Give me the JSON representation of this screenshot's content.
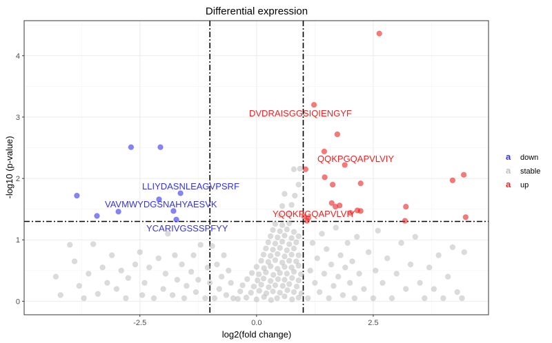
{
  "chart_data": {
    "type": "scatter",
    "title": "Differential expression",
    "xlabel": "log2(fold change)",
    "ylabel": "-log10 (p-value)",
    "xlim": [
      -4.98,
      4.97
    ],
    "ylim": [
      -0.22,
      4.57
    ],
    "x_ticks": [
      -2.5,
      0.0,
      2.5
    ],
    "x_tick_labels": [
      "-2.5",
      "0.0",
      "2.5"
    ],
    "y_ticks": [
      0,
      1,
      2,
      3,
      4
    ],
    "y_tick_labels": [
      "0",
      "1",
      "2",
      "3",
      "4"
    ],
    "grid": true,
    "thresholds": {
      "x": [
        -1,
        1
      ],
      "y": 1.3
    },
    "legend": {
      "placement": "right",
      "entries": [
        "down",
        "stable",
        "up"
      ],
      "key_glyph": "a"
    },
    "colors": {
      "down": "#3333ee",
      "stable": "#bdbdbd",
      "up": "#ee2222"
    },
    "series": [
      {
        "name": "down",
        "points": [
          [
            -2.69,
            2.51
          ],
          [
            -2.06,
            2.51
          ],
          [
            -3.85,
            1.72
          ],
          [
            -1.63,
            1.76
          ],
          [
            -2.09,
            1.66
          ],
          [
            -2.96,
            1.46
          ],
          [
            -3.42,
            1.39
          ],
          [
            -1.78,
            1.47
          ],
          [
            -1.72,
            1.33
          ]
        ]
      },
      {
        "name": "up",
        "points": [
          [
            2.63,
            4.36
          ],
          [
            1.23,
            3.2
          ],
          [
            1.73,
            2.72
          ],
          [
            1.45,
            2.44
          ],
          [
            1.05,
            2.15
          ],
          [
            1.89,
            2.22
          ],
          [
            1.46,
            2.02
          ],
          [
            1.63,
            1.9
          ],
          [
            2.23,
            1.92
          ],
          [
            4.2,
            1.97
          ],
          [
            4.44,
            2.06
          ],
          [
            1.61,
            1.6
          ],
          [
            1.78,
            1.56
          ],
          [
            1.69,
            1.54
          ],
          [
            2.16,
            1.48
          ],
          [
            2.23,
            1.47
          ],
          [
            2.01,
            1.44
          ],
          [
            3.2,
            1.54
          ],
          [
            3.18,
            1.31
          ],
          [
            4.48,
            1.37
          ],
          [
            1.02,
            1.38
          ],
          [
            1.11,
            1.36
          ],
          [
            1.08,
            1.31
          ]
        ]
      },
      {
        "name": "stable",
        "points": [
          [
            -4.3,
            0.4
          ],
          [
            -4.2,
            0.1
          ],
          [
            -4.0,
            0.92
          ],
          [
            -3.9,
            0.65
          ],
          [
            -3.8,
            0.25
          ],
          [
            -3.7,
            0.05
          ],
          [
            -3.6,
            0.45
          ],
          [
            -3.5,
            0.93
          ],
          [
            -3.4,
            0.12
          ],
          [
            -3.3,
            0.55
          ],
          [
            -3.2,
            0.3
          ],
          [
            -3.1,
            0.75
          ],
          [
            -3.0,
            0.2
          ],
          [
            -2.9,
            0.5
          ],
          [
            -2.8,
            0.05
          ],
          [
            -2.75,
            0.38
          ],
          [
            -2.6,
            0.6
          ],
          [
            -2.5,
            0.8
          ],
          [
            -2.45,
            0.1
          ],
          [
            -2.4,
            0.3
          ],
          [
            -2.3,
            0.55
          ],
          [
            -2.2,
            0.05
          ],
          [
            -2.1,
            0.7
          ],
          [
            -2.0,
            0.2
          ],
          [
            -1.95,
            0.45
          ],
          [
            -1.9,
            1.1
          ],
          [
            -1.8,
            0.1
          ],
          [
            -1.75,
            0.75
          ],
          [
            -1.7,
            0.35
          ],
          [
            -1.6,
            0.6
          ],
          [
            -1.55,
            0.05
          ],
          [
            -1.5,
            0.25
          ],
          [
            -1.4,
            0.48
          ],
          [
            -1.35,
            0.75
          ],
          [
            -1.3,
            0.15
          ],
          [
            -1.25,
            0.35
          ],
          [
            -1.2,
            0.92
          ],
          [
            -1.1,
            0.05
          ],
          [
            -1.05,
            0.55
          ],
          [
            -1.0,
            0.3
          ],
          [
            -0.95,
            0.9
          ],
          [
            -0.9,
            0.05
          ],
          [
            -0.85,
            0.6
          ],
          [
            -0.8,
            0.2
          ],
          [
            -0.75,
            0.4
          ],
          [
            -0.7,
            0.75
          ],
          [
            -0.65,
            0.1
          ],
          [
            -0.6,
            0.5
          ],
          [
            -0.55,
            0.3
          ],
          [
            -0.5,
            0.05
          ],
          [
            1.1,
            0.05
          ],
          [
            1.15,
            0.5
          ],
          [
            1.2,
            0.95
          ],
          [
            1.25,
            0.3
          ],
          [
            1.3,
            0.7
          ],
          [
            1.35,
            0.15
          ],
          [
            1.4,
            1.1
          ],
          [
            1.45,
            0.45
          ],
          [
            1.5,
            0.85
          ],
          [
            1.55,
            0.05
          ],
          [
            1.6,
            0.6
          ],
          [
            1.65,
            0.25
          ],
          [
            1.7,
            1.2
          ],
          [
            1.75,
            0.4
          ],
          [
            1.8,
            0.75
          ],
          [
            1.85,
            0.1
          ],
          [
            1.9,
            0.55
          ],
          [
            1.95,
            0.95
          ],
          [
            2.0,
            0.3
          ],
          [
            2.05,
            0.65
          ],
          [
            2.1,
            0.05
          ],
          [
            2.15,
            1.05
          ],
          [
            2.2,
            0.45
          ],
          [
            2.3,
            0.2
          ],
          [
            2.4,
            0.8
          ],
          [
            2.5,
            0.05
          ],
          [
            2.55,
            0.5
          ],
          [
            2.6,
            1.15
          ],
          [
            2.7,
            0.3
          ],
          [
            2.8,
            0.7
          ],
          [
            2.9,
            0.05
          ],
          [
            3.0,
            0.45
          ],
          [
            3.1,
            0.95
          ],
          [
            3.2,
            0.2
          ],
          [
            3.3,
            0.6
          ],
          [
            3.4,
            1.05
          ],
          [
            3.5,
            0.3
          ],
          [
            3.6,
            0.05
          ],
          [
            3.7,
            0.55
          ],
          [
            3.8,
            0.2
          ],
          [
            3.9,
            0.75
          ],
          [
            4.0,
            0.05
          ],
          [
            4.1,
            0.4
          ],
          [
            4.2,
            0.88
          ],
          [
            4.3,
            0.15
          ],
          [
            4.4,
            0.05
          ],
          [
            4.45,
            0.8
          ],
          [
            -0.4,
            0.04
          ],
          [
            -0.22,
            0.06
          ],
          [
            0.0,
            0.03
          ],
          [
            0.16,
            0.07
          ],
          [
            0.31,
            0.02
          ],
          [
            0.44,
            0.05
          ],
          [
            0.6,
            0.08
          ],
          [
            0.76,
            0.03
          ],
          [
            0.9,
            0.06
          ],
          [
            -0.35,
            0.16
          ],
          [
            -0.12,
            0.14
          ],
          [
            0.06,
            0.17
          ],
          [
            0.21,
            0.13
          ],
          [
            0.35,
            0.16
          ],
          [
            0.5,
            0.14
          ],
          [
            0.66,
            0.18
          ],
          [
            0.8,
            0.15
          ],
          [
            0.96,
            0.13
          ],
          [
            -0.3,
            0.26
          ],
          [
            -0.06,
            0.24
          ],
          [
            0.1,
            0.27
          ],
          [
            0.26,
            0.23
          ],
          [
            0.4,
            0.26
          ],
          [
            0.56,
            0.25
          ],
          [
            0.7,
            0.28
          ],
          [
            0.86,
            0.24
          ],
          [
            -0.2,
            0.36
          ],
          [
            0.02,
            0.34
          ],
          [
            0.15,
            0.37
          ],
          [
            0.3,
            0.33
          ],
          [
            0.46,
            0.36
          ],
          [
            0.6,
            0.35
          ],
          [
            0.76,
            0.38
          ],
          [
            0.9,
            0.34
          ],
          [
            -0.1,
            0.46
          ],
          [
            0.05,
            0.44
          ],
          [
            0.2,
            0.47
          ],
          [
            0.36,
            0.43
          ],
          [
            0.5,
            0.46
          ],
          [
            0.65,
            0.45
          ],
          [
            0.8,
            0.48
          ],
          [
            0.95,
            0.44
          ],
          [
            0.0,
            0.56
          ],
          [
            0.16,
            0.54
          ],
          [
            0.3,
            0.57
          ],
          [
            0.45,
            0.53
          ],
          [
            0.6,
            0.56
          ],
          [
            0.75,
            0.55
          ],
          [
            0.9,
            0.58
          ],
          [
            0.1,
            0.66
          ],
          [
            0.25,
            0.64
          ],
          [
            0.4,
            0.67
          ],
          [
            0.55,
            0.63
          ],
          [
            0.7,
            0.66
          ],
          [
            0.85,
            0.65
          ],
          [
            0.15,
            0.76
          ],
          [
            0.3,
            0.74
          ],
          [
            0.45,
            0.77
          ],
          [
            0.6,
            0.73
          ],
          [
            0.75,
            0.76
          ],
          [
            0.9,
            0.75
          ],
          [
            0.2,
            0.86
          ],
          [
            0.35,
            0.84
          ],
          [
            0.5,
            0.87
          ],
          [
            0.65,
            0.83
          ],
          [
            0.8,
            0.86
          ],
          [
            0.25,
            0.96
          ],
          [
            0.4,
            0.94
          ],
          [
            0.55,
            0.97
          ],
          [
            0.7,
            0.93
          ],
          [
            0.85,
            0.96
          ],
          [
            0.3,
            1.06
          ],
          [
            0.45,
            1.04
          ],
          [
            0.6,
            1.07
          ],
          [
            0.75,
            1.03
          ],
          [
            0.9,
            1.06
          ],
          [
            0.35,
            1.16
          ],
          [
            0.5,
            1.14
          ],
          [
            0.65,
            1.17
          ],
          [
            0.8,
            1.13
          ],
          [
            0.4,
            1.26
          ],
          [
            0.55,
            1.24
          ],
          [
            0.7,
            1.27
          ],
          [
            0.5,
            1.4
          ],
          [
            0.7,
            1.42
          ],
          [
            0.55,
            1.55
          ],
          [
            0.75,
            1.57
          ],
          [
            0.6,
            1.75
          ],
          [
            0.82,
            1.72
          ],
          [
            0.9,
            1.9
          ],
          [
            0.8,
            2.15
          ],
          [
            0.93,
            2.16
          ]
        ]
      }
    ],
    "annotations": [
      {
        "text": "LLIYDASNLEAGVPSRF",
        "group": "down"
      },
      {
        "text": "VAVMWYDGSNAHYAESVK",
        "group": "down"
      },
      {
        "text": "YCARIVGSSSPFYY",
        "group": "down"
      },
      {
        "text": "DVDRAISGGSIQIENGYF",
        "group": "up"
      },
      {
        "text": "QQKPGQAPVLVIY",
        "group": "up"
      },
      {
        "text": "YQQKPGQAPVLVIY",
        "group": "up"
      }
    ]
  }
}
